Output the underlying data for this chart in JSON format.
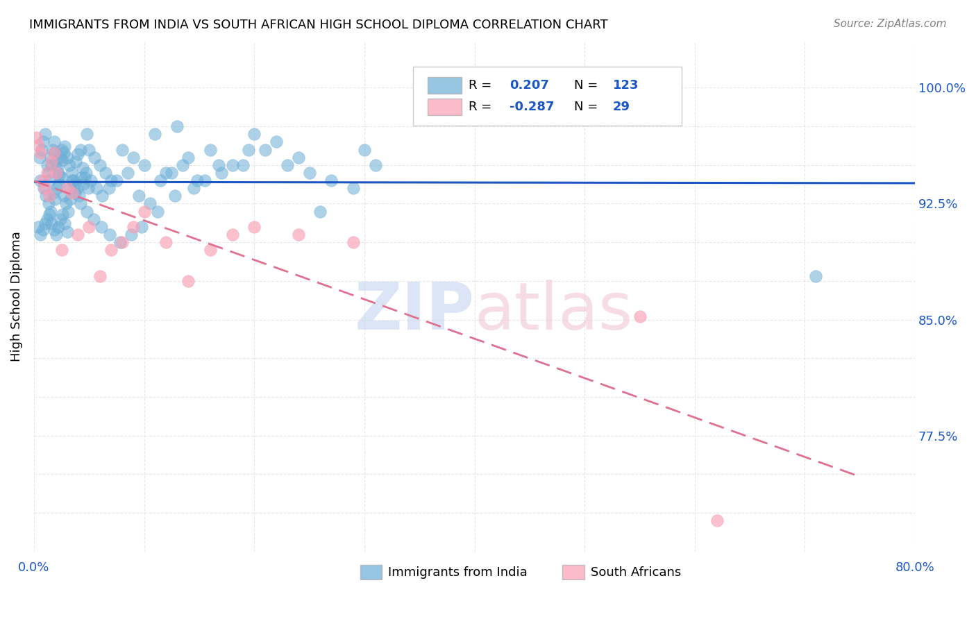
{
  "title": "IMMIGRANTS FROM INDIA VS SOUTH AFRICAN HIGH SCHOOL DIPLOMA CORRELATION CHART",
  "source": "Source: ZipAtlas.com",
  "ylabel": "High School Diploma",
  "xlim": [
    0.0,
    0.8
  ],
  "ylim": [
    0.7,
    1.03
  ],
  "legend_R1": "0.207",
  "legend_N1": "123",
  "legend_R2": "-0.287",
  "legend_N2": "29",
  "blue_color": "#6baed6",
  "pink_color": "#fa9fb5",
  "line_blue": "#1a56c4",
  "line_pink": "#e07090",
  "background_color": "#ffffff",
  "ytick_vals": [
    0.725,
    0.75,
    0.775,
    0.8,
    0.825,
    0.85,
    0.875,
    0.9,
    0.925,
    0.95,
    0.975,
    1.0
  ],
  "ytick_labels": [
    "",
    "",
    "77.5%",
    "",
    "",
    "85.0%",
    "",
    "",
    "92.5%",
    "",
    "",
    "100.0%"
  ],
  "india_x": [
    0.005,
    0.007,
    0.008,
    0.01,
    0.012,
    0.013,
    0.014,
    0.015,
    0.016,
    0.017,
    0.018,
    0.019,
    0.02,
    0.021,
    0.022,
    0.023,
    0.024,
    0.025,
    0.026,
    0.027,
    0.028,
    0.03,
    0.032,
    0.034,
    0.036,
    0.038,
    0.04,
    0.042,
    0.044,
    0.046,
    0.048,
    0.05,
    0.055,
    0.06,
    0.065,
    0.07,
    0.08,
    0.09,
    0.1,
    0.11,
    0.12,
    0.13,
    0.14,
    0.16,
    0.18,
    0.2,
    0.22,
    0.24,
    0.26,
    0.3,
    0.006,
    0.009,
    0.011,
    0.013,
    0.015,
    0.017,
    0.019,
    0.021,
    0.023,
    0.025,
    0.027,
    0.029,
    0.031,
    0.033,
    0.035,
    0.037,
    0.039,
    0.041,
    0.043,
    0.045,
    0.047,
    0.049,
    0.052,
    0.057,
    0.062,
    0.068,
    0.075,
    0.085,
    0.095,
    0.105,
    0.115,
    0.125,
    0.135,
    0.145,
    0.155,
    0.17,
    0.19,
    0.21,
    0.23,
    0.25,
    0.27,
    0.29,
    0.31,
    0.004,
    0.006,
    0.008,
    0.01,
    0.012,
    0.014,
    0.016,
    0.018,
    0.02,
    0.022,
    0.024,
    0.026,
    0.028,
    0.03,
    0.033,
    0.037,
    0.042,
    0.048,
    0.054,
    0.061,
    0.069,
    0.078,
    0.088,
    0.098,
    0.112,
    0.128,
    0.148,
    0.168,
    0.195,
    0.71
  ],
  "india_y": [
    0.955,
    0.96,
    0.965,
    0.97,
    0.95,
    0.945,
    0.94,
    0.955,
    0.95,
    0.96,
    0.965,
    0.958,
    0.952,
    0.948,
    0.945,
    0.943,
    0.955,
    0.96,
    0.953,
    0.958,
    0.962,
    0.955,
    0.95,
    0.945,
    0.94,
    0.952,
    0.957,
    0.96,
    0.948,
    0.942,
    0.97,
    0.96,
    0.955,
    0.95,
    0.945,
    0.94,
    0.96,
    0.955,
    0.95,
    0.97,
    0.945,
    0.975,
    0.955,
    0.96,
    0.95,
    0.97,
    0.965,
    0.955,
    0.92,
    0.96,
    0.94,
    0.935,
    0.93,
    0.925,
    0.92,
    0.932,
    0.928,
    0.935,
    0.938,
    0.942,
    0.93,
    0.925,
    0.92,
    0.935,
    0.94,
    0.938,
    0.935,
    0.93,
    0.942,
    0.938,
    0.945,
    0.935,
    0.94,
    0.935,
    0.93,
    0.935,
    0.94,
    0.945,
    0.93,
    0.925,
    0.94,
    0.945,
    0.95,
    0.935,
    0.94,
    0.945,
    0.95,
    0.96,
    0.95,
    0.945,
    0.94,
    0.935,
    0.95,
    0.91,
    0.905,
    0.908,
    0.912,
    0.915,
    0.918,
    0.912,
    0.908,
    0.905,
    0.91,
    0.915,
    0.918,
    0.912,
    0.907,
    0.928,
    0.932,
    0.925,
    0.92,
    0.915,
    0.91,
    0.905,
    0.9,
    0.905,
    0.91,
    0.92,
    0.93,
    0.94,
    0.95,
    0.96,
    0.878
  ],
  "sa_x": [
    0.002,
    0.004,
    0.006,
    0.008,
    0.01,
    0.012,
    0.014,
    0.016,
    0.018,
    0.02,
    0.025,
    0.03,
    0.035,
    0.04,
    0.05,
    0.06,
    0.07,
    0.08,
    0.09,
    0.1,
    0.12,
    0.14,
    0.16,
    0.18,
    0.2,
    0.24,
    0.29,
    0.55,
    0.62
  ],
  "sa_y": [
    0.968,
    0.963,
    0.958,
    0.94,
    0.935,
    0.945,
    0.93,
    0.952,
    0.958,
    0.945,
    0.895,
    0.935,
    0.932,
    0.905,
    0.91,
    0.878,
    0.895,
    0.9,
    0.91,
    0.92,
    0.9,
    0.875,
    0.895,
    0.905,
    0.91,
    0.905,
    0.9,
    0.852,
    0.72
  ]
}
